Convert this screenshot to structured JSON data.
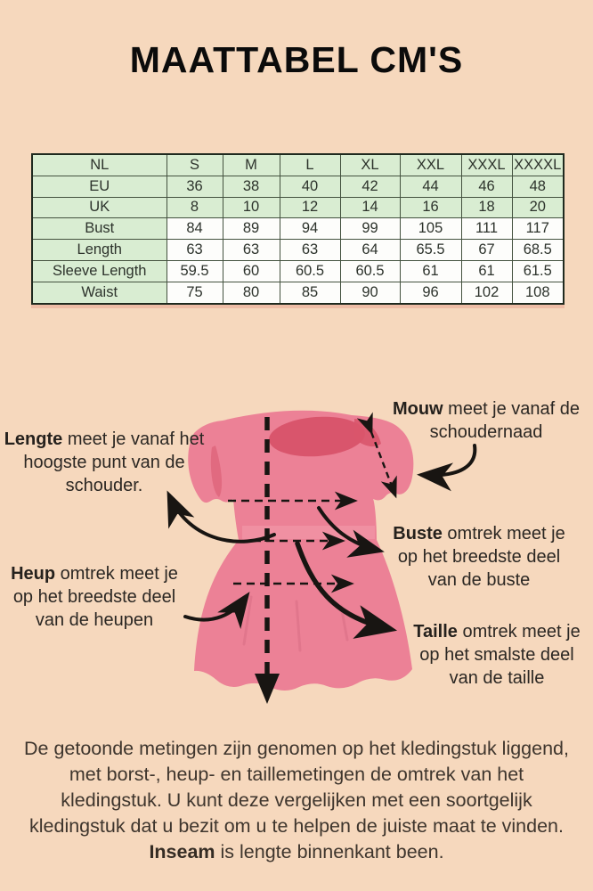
{
  "title": "MAATTABEL CM'S",
  "table": {
    "rows": [
      {
        "label": "NL",
        "values": [
          "S",
          "M",
          "L",
          "XL",
          "XXL",
          "XXXL",
          "XXXXL"
        ],
        "tone": "green"
      },
      {
        "label": "EU",
        "values": [
          "36",
          "38",
          "40",
          "42",
          "44",
          "46",
          "48"
        ],
        "tone": "green"
      },
      {
        "label": "UK",
        "values": [
          "8",
          "10",
          "12",
          "14",
          "16",
          "18",
          "20"
        ],
        "tone": "green"
      },
      {
        "label": "Bust",
        "values": [
          "84",
          "89",
          "94",
          "99",
          "105",
          "111",
          "117"
        ],
        "tone": "white"
      },
      {
        "label": "Length",
        "values": [
          "63",
          "63",
          "63",
          "64",
          "65.5",
          "67",
          "68.5"
        ],
        "tone": "white"
      },
      {
        "label": "Sleeve Length",
        "values": [
          "59.5",
          "60",
          "60.5",
          "60.5",
          "61",
          "61",
          "61.5"
        ],
        "tone": "white"
      },
      {
        "label": "Waist",
        "values": [
          "75",
          "80",
          "85",
          "90",
          "96",
          "102",
          "108"
        ],
        "tone": "white"
      }
    ]
  },
  "annotations": {
    "lengte": {
      "bold": "Lengte",
      "rest": " meet je vanaf het hoogste punt van de schouder."
    },
    "mouw": {
      "bold": "Mouw",
      "rest": " meet je vanaf de schoudernaad"
    },
    "buste": {
      "bold": "Buste",
      "rest": " omtrek meet je op het breedste deel van de buste"
    },
    "heup": {
      "bold": "Heup",
      "rest": " omtrek meet je op het breedste deel van de heupen"
    },
    "taille": {
      "bold": "Taille",
      "rest": " omtrek meet je op het smalste deel van de taille"
    }
  },
  "paragraph": {
    "part1": "De getoonde metingen zijn genomen op het kledingstuk liggend, met borst-, heup- en taillemetingen de omtrek van het kledingstuk. U kunt deze vergelijken met een soortgelijk kledingstuk dat u bezit om u te helpen de juiste maat te vinden. ",
    "bold": "Inseam",
    "part2": " is lengte binnenkant been."
  },
  "colors": {
    "background": "#f6d8bd",
    "table_green": "#d9edd2",
    "table_border": "#44523f",
    "dress_pink": "#ec8196",
    "dress_dark_rose": "#d9556c",
    "ink": "#181512"
  }
}
